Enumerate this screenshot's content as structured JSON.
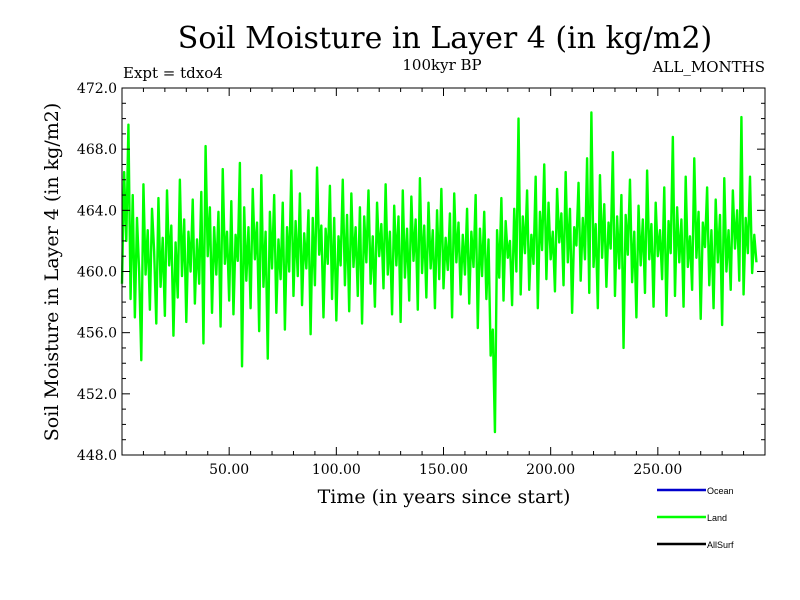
{
  "chart_data": {
    "type": "line",
    "title": "Soil Moisture in Layer 4 (in kg/m2)",
    "subtitle_left": "Expt = tdxo4",
    "subtitle_center": "100kyr BP",
    "subtitle_right": "ALL_MONTHS",
    "xlabel": "Time (in years since start)",
    "ylabel": "Soil Moisture in Layer 4 (in kg/m2)",
    "xlim": [
      0,
      300
    ],
    "ylim": [
      448,
      472
    ],
    "x_ticks": [
      50,
      100,
      150,
      200,
      250
    ],
    "x_tick_labels": [
      "50.00",
      "100.00",
      "150.00",
      "200.00",
      "250.00"
    ],
    "y_ticks": [
      448,
      452,
      456,
      460,
      464,
      468,
      472
    ],
    "y_tick_labels": [
      "448.0",
      "452.0",
      "456.0",
      "460.0",
      "464.0",
      "468.0",
      "472.0"
    ],
    "grid": false,
    "legend_position": "bottom-right",
    "legend": [
      {
        "name": "Ocean",
        "color": "#0000cc"
      },
      {
        "name": "Land",
        "color": "#00ff00"
      },
      {
        "name": "AllSurf",
        "color": "#000000"
      }
    ],
    "series": [
      {
        "name": "Land",
        "color": "#00ff00",
        "x_start": 0,
        "x_step": 1,
        "values": [
          459.2,
          466.5,
          462.0,
          469.6,
          458.2,
          465.0,
          457.0,
          463.5,
          460.0,
          454.2,
          465.7,
          459.8,
          462.7,
          457.5,
          464.1,
          461.3,
          456.6,
          464.8,
          459.0,
          462.2,
          457.1,
          465.3,
          460.4,
          463.0,
          455.8,
          461.9,
          458.3,
          466.0,
          459.7,
          463.4,
          456.7,
          462.6,
          460.0,
          464.7,
          457.9,
          462.1,
          459.2,
          465.2,
          455.3,
          468.2,
          461.0,
          464.2,
          457.3,
          462.9,
          459.8,
          463.9,
          456.4,
          466.7,
          460.5,
          462.6,
          458.1,
          464.6,
          457.2,
          462.4,
          460.7,
          467.1,
          453.8,
          464.2,
          459.4,
          462.9,
          457.6,
          465.4,
          460.8,
          463.2,
          456.1,
          466.3,
          459.0,
          462.6,
          454.3,
          463.9,
          460.2,
          465.0,
          457.3,
          462.1,
          459.5,
          464.5,
          456.2,
          462.9,
          460.0,
          466.6,
          458.4,
          463.3,
          459.7,
          465.1,
          457.8,
          462.5,
          460.2,
          464.0,
          455.9,
          463.5,
          459.1,
          466.8,
          461.1,
          463.0,
          457.0,
          462.8,
          460.5,
          465.6,
          458.2,
          463.5,
          456.8,
          462.3,
          460.4,
          466.0,
          459.1,
          463.7,
          457.4,
          465.1,
          460.3,
          462.9,
          458.4,
          464.2,
          456.6,
          463.6,
          460.6,
          465.3,
          459.2,
          462.3,
          457.7,
          464.5,
          461.0,
          463.1,
          458.9,
          465.7,
          459.8,
          462.6,
          457.2,
          464.3,
          460.4,
          463.6,
          456.7,
          465.3,
          459.6,
          462.8,
          458.1,
          464.9,
          460.7,
          463.4,
          457.5,
          466.1,
          459.9,
          463.0,
          458.3,
          464.5,
          460.2,
          462.7,
          457.6,
          464.0,
          459.5,
          465.4,
          458.9,
          462.2,
          460.1,
          463.8,
          457.0,
          465.1,
          460.6,
          463.2,
          458.5,
          462.4,
          459.8,
          464.1,
          457.9,
          462.6,
          460.3,
          465.0,
          456.3,
          462.8,
          459.7,
          463.9,
          458.2,
          462.1,
          454.5,
          456.2,
          449.5,
          462.7,
          459.6,
          464.8,
          458.1,
          463.3,
          460.9,
          462.0,
          457.8,
          464.1,
          460.0,
          470.0,
          458.5,
          463.6,
          461.2,
          465.3,
          458.8,
          462.4,
          460.5,
          466.2,
          457.6,
          463.9,
          461.4,
          467.0,
          459.5,
          464.5,
          460.8,
          462.6,
          458.7,
          465.4,
          461.9,
          463.8,
          459.1,
          466.5,
          460.6,
          464.1,
          457.3,
          462.9,
          461.7,
          465.8,
          459.4,
          463.5,
          460.8,
          467.4,
          458.6,
          470.4,
          460.3,
          463.1,
          457.6,
          466.3,
          460.9,
          464.4,
          459.0,
          463.2,
          461.5,
          467.8,
          458.4,
          463.6,
          460.2,
          465.0,
          455.0,
          463.7,
          461.1,
          466.0,
          459.3,
          462.6,
          457.0,
          464.3,
          460.4,
          463.4,
          458.6,
          466.6,
          460.8,
          463.1,
          457.7,
          464.5,
          461.0,
          462.7,
          459.5,
          465.5,
          457.1,
          463.3,
          461.2,
          468.8,
          458.4,
          464.2,
          460.6,
          463.4,
          457.7,
          466.2,
          460.3,
          462.3,
          458.8,
          467.4,
          460.9,
          463.9,
          456.9,
          463.2,
          461.6,
          465.5,
          459.1,
          462.7,
          457.6,
          464.7,
          460.6,
          463.7,
          456.5,
          466.1,
          460.0,
          462.7,
          458.8,
          465.3,
          461.5,
          464.0,
          459.4,
          470.1,
          458.5,
          463.5,
          461.2,
          466.2,
          459.9,
          462.4,
          460.6
        ]
      }
    ]
  }
}
